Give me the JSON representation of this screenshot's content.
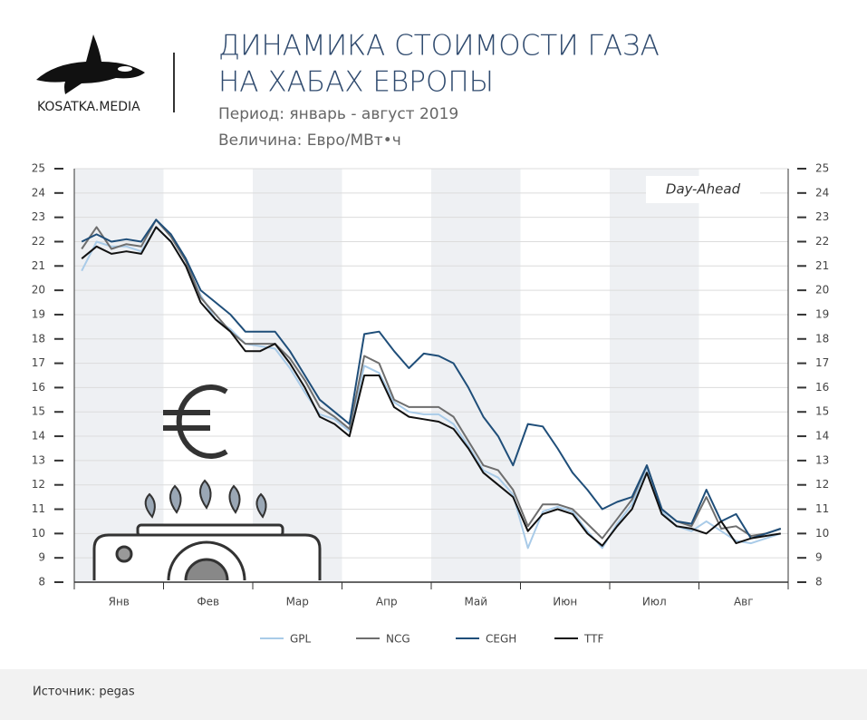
{
  "brand": "KOSATKA.MEDIA",
  "source": "Источник: pegas",
  "chart_data": {
    "type": "line",
    "title": [
      "ДИНАМИКА СТОИМОСТИ ГАЗА",
      "НА ХАБАХ ЕВРОПЫ"
    ],
    "subtitle": [
      "Период: январь - август 2019",
      "Величина: Евро/МВт•ч"
    ],
    "annotation": "Day-Ahead",
    "categories": [
      "Янв",
      null,
      null,
      null,
      null,
      null,
      "Фев",
      null,
      null,
      null,
      null,
      null,
      "Мар",
      null,
      null,
      null,
      null,
      null,
      "Апр",
      null,
      null,
      null,
      null,
      null,
      "Май",
      null,
      null,
      null,
      null,
      null,
      "Июн",
      null,
      null,
      null,
      null,
      null,
      "Июл",
      null,
      null,
      null,
      null,
      null,
      "Авг",
      null,
      null,
      null,
      null,
      null
    ],
    "ylim": [
      8,
      25
    ],
    "yticks": [
      8,
      9,
      10,
      11,
      12,
      13,
      14,
      15,
      16,
      17,
      18,
      19,
      20,
      21,
      22,
      23,
      24,
      25
    ],
    "grid": true,
    "series": [
      {
        "name": "GPL",
        "color": "#a9cbe8",
        "values": [
          20.8,
          22.0,
          21.8,
          21.8,
          21.6,
          22.6,
          22.0,
          21.0,
          19.8,
          18.8,
          18.4,
          17.8,
          17.7,
          17.6,
          16.8,
          15.8,
          14.9,
          14.7,
          14.2,
          16.9,
          16.6,
          15.4,
          15.0,
          14.9,
          14.9,
          14.5,
          13.6,
          12.6,
          12.3,
          11.6,
          9.4,
          10.9,
          11.1,
          10.9,
          10.1,
          9.4,
          10.4,
          11.2,
          12.7,
          10.9,
          10.3,
          10.1,
          10.5,
          10.1,
          9.7,
          9.6,
          9.8,
          10.0
        ]
      },
      {
        "name": "NCG",
        "color": "#6e6e6e",
        "values": [
          21.7,
          22.6,
          21.7,
          21.9,
          21.8,
          22.9,
          22.2,
          21.2,
          19.7,
          19.0,
          18.3,
          17.8,
          17.8,
          17.8,
          17.2,
          16.3,
          15.2,
          14.8,
          14.3,
          17.3,
          17.0,
          15.5,
          15.2,
          15.2,
          15.2,
          14.8,
          13.8,
          12.8,
          12.6,
          11.8,
          10.3,
          11.2,
          11.2,
          11.0,
          10.4,
          9.8,
          10.6,
          11.4,
          12.8,
          11.0,
          10.5,
          10.3,
          11.5,
          10.2,
          10.3,
          9.9,
          10.0,
          10.2
        ]
      },
      {
        "name": "CEGH",
        "color": "#1f4e79",
        "values": [
          22.0,
          22.3,
          22.0,
          22.1,
          22.0,
          22.9,
          22.3,
          21.3,
          20.0,
          19.5,
          19.0,
          18.3,
          18.3,
          18.3,
          17.5,
          16.5,
          15.5,
          15.0,
          14.5,
          18.2,
          18.3,
          17.5,
          16.8,
          17.4,
          17.3,
          17.0,
          16.0,
          14.8,
          14.0,
          12.8,
          14.5,
          14.4,
          13.5,
          12.5,
          11.8,
          11.0,
          11.3,
          11.5,
          12.8,
          11.0,
          10.5,
          10.4,
          11.8,
          10.5,
          10.8,
          9.8,
          10.0,
          10.2
        ]
      },
      {
        "name": "TTF",
        "color": "#111111",
        "values": [
          21.3,
          21.8,
          21.5,
          21.6,
          21.5,
          22.6,
          22.0,
          21.0,
          19.5,
          18.8,
          18.3,
          17.5,
          17.5,
          17.8,
          17.0,
          16.0,
          14.8,
          14.5,
          14.0,
          16.5,
          16.5,
          15.2,
          14.8,
          14.7,
          14.6,
          14.3,
          13.5,
          12.5,
          12.0,
          11.5,
          10.1,
          10.8,
          11.0,
          10.8,
          10.0,
          9.5,
          10.3,
          11.0,
          12.5,
          10.8,
          10.3,
          10.2,
          10.0,
          10.5,
          9.6,
          9.8,
          9.9,
          10.0
        ]
      }
    ]
  }
}
